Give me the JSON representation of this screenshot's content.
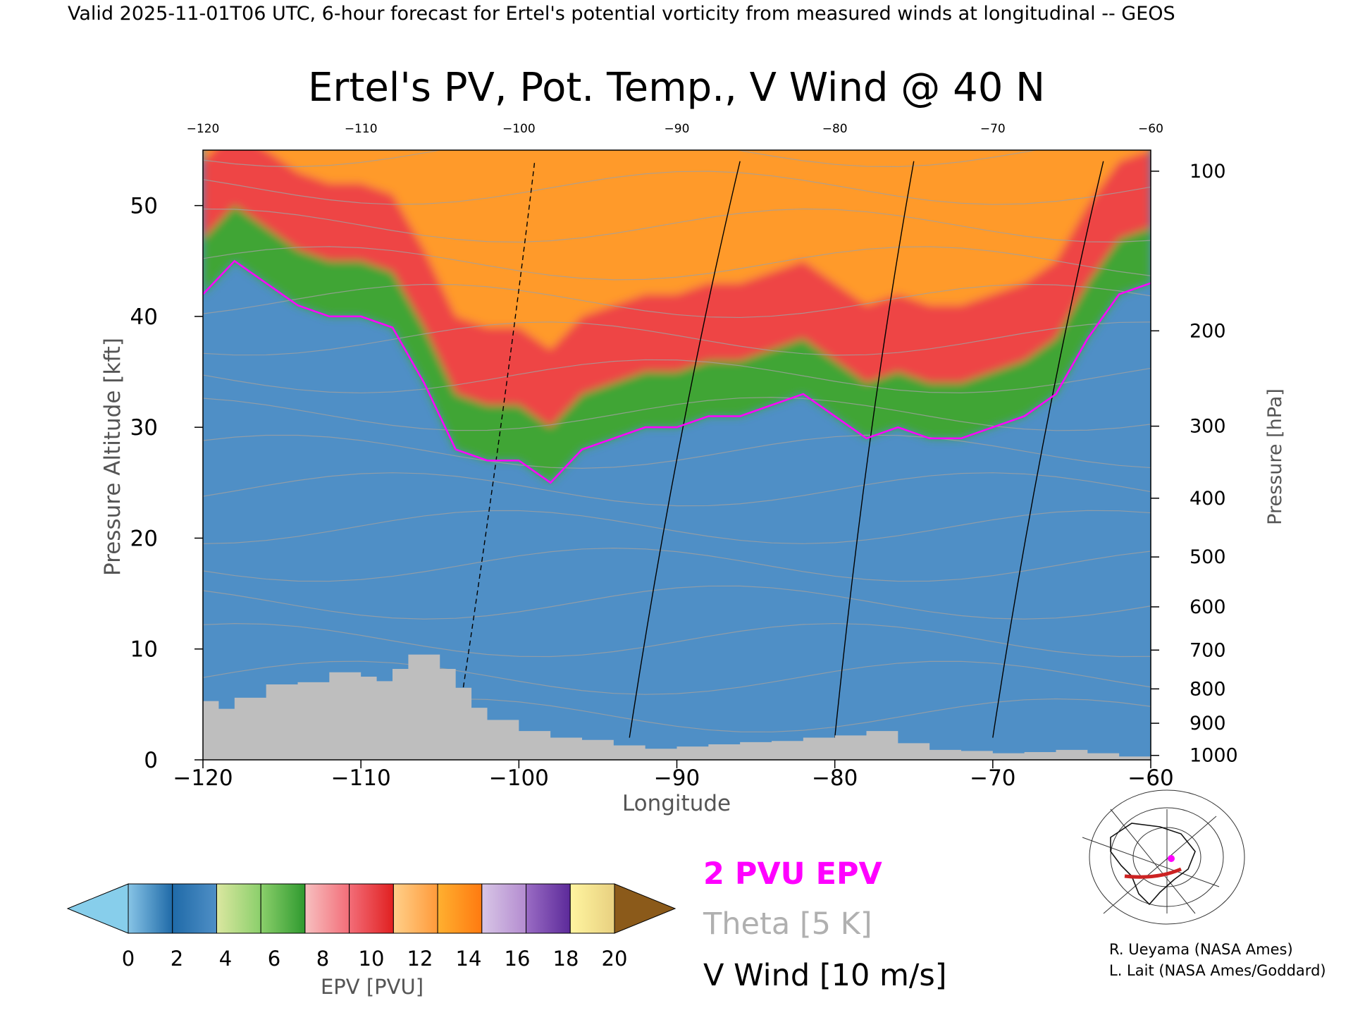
{
  "header": "Valid 2025-11-01T06 UTC, 6-hour forecast for Ertel's potential vorticity from measured winds at longitudinal -- GEOS",
  "colors": {
    "plot_bg": "#4f8fc6",
    "stratosphere": "#ee4444",
    "green": "#3fa535",
    "orange": "#ff9a2a",
    "terrain": "#bebebe",
    "pv2_contour": "#ff00ff",
    "theta_contour": "#a0a0a0",
    "wind_contour": "#000000"
  },
  "chart_data": {
    "type": "heatmap",
    "title": "Ertel's PV, Pot. Temp., V Wind @ 40 N",
    "xlabel": "Longitude",
    "ylabel": "Pressure Altitude [kft]",
    "ylabel_right": "Pressure [hPa]",
    "xlim": [
      -120,
      -60
    ],
    "ylim": [
      0,
      55
    ],
    "x_ticks": [
      -120,
      -110,
      -100,
      -90,
      -80,
      -70,
      -60
    ],
    "x_ticks_top": [
      -120,
      -110,
      -100,
      -90,
      -80,
      -70,
      -60
    ],
    "y_ticks": [
      0,
      10,
      20,
      30,
      40,
      50
    ],
    "pressure_ticks": [
      {
        "hpa": "100",
        "kft": 53.1
      },
      {
        "hpa": "200",
        "kft": 38.7
      },
      {
        "hpa": "300",
        "kft": 30.1
      },
      {
        "hpa": "400",
        "kft": 23.6
      },
      {
        "hpa": "500",
        "kft": 18.3
      },
      {
        "hpa": "600",
        "kft": 13.8
      },
      {
        "hpa": "700",
        "kft": 9.9
      },
      {
        "hpa": "800",
        "kft": 6.4
      },
      {
        "hpa": "900",
        "kft": 3.3
      },
      {
        "hpa": "1000",
        "kft": 0.4
      }
    ],
    "tropopause_2pvu_kft": [
      {
        "lon": -120,
        "kft": 42
      },
      {
        "lon": -118,
        "kft": 45
      },
      {
        "lon": -116,
        "kft": 43
      },
      {
        "lon": -114,
        "kft": 41
      },
      {
        "lon": -112,
        "kft": 40
      },
      {
        "lon": -110,
        "kft": 40
      },
      {
        "lon": -108,
        "kft": 39
      },
      {
        "lon": -106,
        "kft": 34
      },
      {
        "lon": -104,
        "kft": 28
      },
      {
        "lon": -102,
        "kft": 27
      },
      {
        "lon": -100,
        "kft": 27
      },
      {
        "lon": -98,
        "kft": 25
      },
      {
        "lon": -96,
        "kft": 28
      },
      {
        "lon": -94,
        "kft": 29
      },
      {
        "lon": -92,
        "kft": 30
      },
      {
        "lon": -90,
        "kft": 30
      },
      {
        "lon": -88,
        "kft": 31
      },
      {
        "lon": -86,
        "kft": 31
      },
      {
        "lon": -84,
        "kft": 32
      },
      {
        "lon": -82,
        "kft": 33
      },
      {
        "lon": -80,
        "kft": 31
      },
      {
        "lon": -78,
        "kft": 29
      },
      {
        "lon": -76,
        "kft": 30
      },
      {
        "lon": -74,
        "kft": 29
      },
      {
        "lon": -72,
        "kft": 29
      },
      {
        "lon": -70,
        "kft": 30
      },
      {
        "lon": -68,
        "kft": 31
      },
      {
        "lon": -66,
        "kft": 33
      },
      {
        "lon": -64,
        "kft": 38
      },
      {
        "lon": -62,
        "kft": 42
      },
      {
        "lon": -60,
        "kft": 43
      }
    ],
    "terrain_kft": [
      {
        "lon": -120,
        "kft": 5.3
      },
      {
        "lon": -119,
        "kft": 4.6
      },
      {
        "lon": -118,
        "kft": 5.6
      },
      {
        "lon": -116,
        "kft": 6.8
      },
      {
        "lon": -114,
        "kft": 7.0
      },
      {
        "lon": -112,
        "kft": 7.9
      },
      {
        "lon": -110,
        "kft": 7.5
      },
      {
        "lon": -109,
        "kft": 7.1
      },
      {
        "lon": -108,
        "kft": 8.2
      },
      {
        "lon": -107,
        "kft": 9.5
      },
      {
        "lon": -106,
        "kft": 9.5
      },
      {
        "lon": -105,
        "kft": 8.2
      },
      {
        "lon": -104,
        "kft": 6.5
      },
      {
        "lon": -103,
        "kft": 4.7
      },
      {
        "lon": -102,
        "kft": 3.6
      },
      {
        "lon": -100,
        "kft": 2.6
      },
      {
        "lon": -98,
        "kft": 2.0
      },
      {
        "lon": -96,
        "kft": 1.8
      },
      {
        "lon": -94,
        "kft": 1.3
      },
      {
        "lon": -92,
        "kft": 1.0
      },
      {
        "lon": -90,
        "kft": 1.2
      },
      {
        "lon": -88,
        "kft": 1.4
      },
      {
        "lon": -86,
        "kft": 1.6
      },
      {
        "lon": -84,
        "kft": 1.7
      },
      {
        "lon": -82,
        "kft": 2.0
      },
      {
        "lon": -80,
        "kft": 2.2
      },
      {
        "lon": -78,
        "kft": 2.6
      },
      {
        "lon": -76,
        "kft": 1.5
      },
      {
        "lon": -74,
        "kft": 0.9
      },
      {
        "lon": -72,
        "kft": 0.8
      },
      {
        "lon": -70,
        "kft": 0.6
      },
      {
        "lon": -68,
        "kft": 0.7
      },
      {
        "lon": -66,
        "kft": 0.9
      },
      {
        "lon": -64,
        "kft": 0.6
      },
      {
        "lon": -62,
        "kft": 0.3
      },
      {
        "lon": -60,
        "kft": 0.2
      }
    ],
    "colorbar": {
      "label": "EPV [PVU]",
      "ticks": [
        "0",
        "2",
        "4",
        "6",
        "8",
        "10",
        "12",
        "14",
        "16",
        "18",
        "20"
      ],
      "underflow_color": "#87ceeb",
      "overflow_color": "#8b5a1a",
      "bins": [
        [
          "#87c4e6",
          "#1f6aa8"
        ],
        [
          "#1f6aa8",
          "#4f8fc6"
        ],
        [
          "#dbe7a0",
          "#8bcf6b"
        ],
        [
          "#8bcf6b",
          "#2f9a2f"
        ],
        [
          "#f7c0c0",
          "#f36d78"
        ],
        [
          "#f36d78",
          "#e02020"
        ],
        [
          "#ffd08a",
          "#ff9a3a"
        ],
        [
          "#ffb030",
          "#ff7a10"
        ],
        [
          "#d8c6e6",
          "#b48cd0"
        ],
        [
          "#9a6cc4",
          "#5c2a9a"
        ],
        [
          "#fff5a0",
          "#e8d080"
        ]
      ]
    },
    "legend": {
      "pv": "2 PVU EPV",
      "theta": "Theta [5 K]",
      "wind": "V Wind [10 m/s]"
    },
    "credits": [
      "R. Ueyama (NASA Ames)",
      "L. Lait (NASA Ames/Goddard)"
    ]
  }
}
